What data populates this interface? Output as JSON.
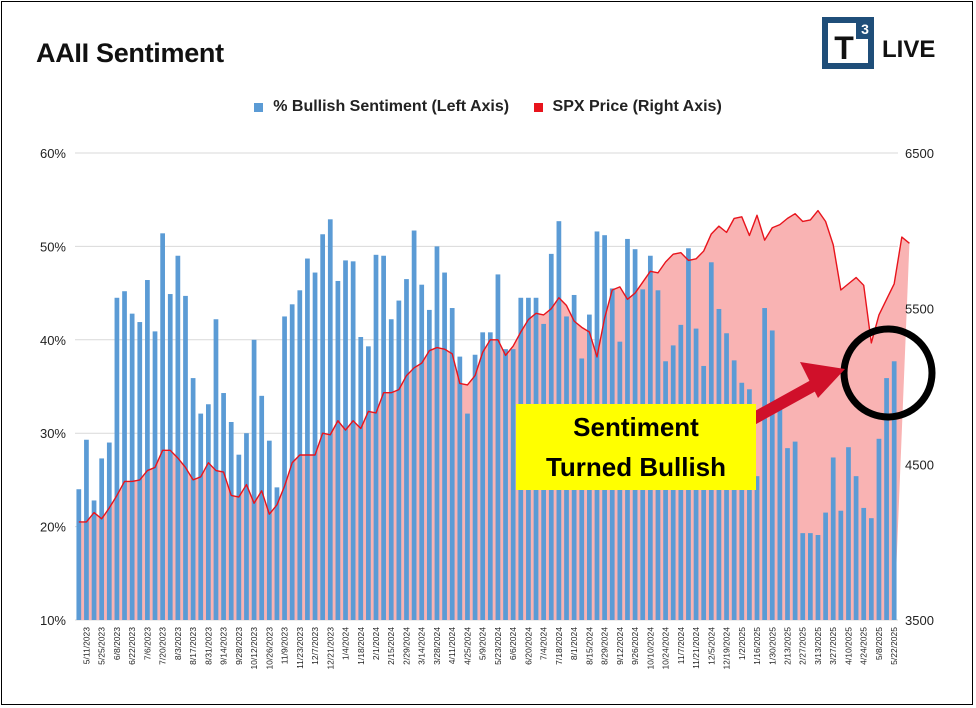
{
  "title": "AAII Sentiment",
  "logo": {
    "mark": "T",
    "superscript": "3",
    "text": "LIVE"
  },
  "legend": {
    "bull_label": "% Bullish Sentiment (Left Axis)",
    "spx_label": "SPX Price (Right Axis)"
  },
  "callout": {
    "line1": "Sentiment",
    "line2": "Turned Bullish"
  },
  "colors": {
    "bar": "#5b9bd5",
    "spx_line": "#e8141c",
    "spx_fill": "#f9b3b3",
    "arrow": "#d0102a",
    "callout_bg": "#ffff00"
  },
  "chart_data": {
    "type": "bar+line",
    "left_axis": {
      "min": 10,
      "max": 60,
      "ticks": [
        "10%",
        "20%",
        "30%",
        "40%",
        "50%",
        "60%"
      ]
    },
    "right_axis": {
      "min": 3500,
      "max": 6500,
      "ticks": [
        "3500",
        "4500",
        "5500",
        "6500"
      ]
    },
    "x_tick_labels": [
      "5/11/2023",
      "5/25/2023",
      "6/8/2023",
      "6/22/2023",
      "7/6/2023",
      "7/20/2023",
      "8/3/2023",
      "8/17/2023",
      "8/31/2023",
      "9/14/2023",
      "9/28/2023",
      "10/12/2023",
      "10/26/2023",
      "11/9/2023",
      "11/23/2023",
      "12/7/2023",
      "12/21/2023",
      "1/4/2024",
      "1/18/2024",
      "2/1/2024",
      "2/15/2024",
      "2/29/2024",
      "3/14/2024",
      "3/28/2024",
      "4/11/2024",
      "4/25/2024",
      "5/9/2024",
      "5/23/2024",
      "6/6/2024",
      "6/20/2024",
      "7/4/2024",
      "7/18/2024",
      "8/1/2024",
      "8/15/2024",
      "8/29/2024",
      "9/12/2024",
      "9/26/2024",
      "10/10/2024",
      "10/24/2024",
      "11/7/2024",
      "11/21/2024",
      "12/5/2024",
      "12/19/2024",
      "1/2/2025",
      "1/16/2025",
      "1/30/2025",
      "2/13/2025",
      "2/27/2025",
      "3/13/2025",
      "3/27/2025",
      "4/10/2025",
      "4/24/2025",
      "5/8/2025",
      "5/22/2025"
    ],
    "series": [
      {
        "name": "% Bullish Sentiment (Left Axis)",
        "axis": "left",
        "type": "bar",
        "values": [
          24.0,
          29.3,
          22.8,
          27.3,
          29.0,
          44.5,
          45.2,
          42.8,
          41.9,
          46.4,
          40.9,
          51.4,
          44.9,
          49.0,
          44.7,
          35.9,
          32.1,
          33.1,
          42.2,
          34.3,
          31.2,
          27.7,
          30.0,
          40.0,
          34.0,
          29.2,
          24.2,
          42.5,
          43.8,
          45.3,
          48.7,
          47.2,
          51.3,
          52.9,
          46.3,
          48.5,
          48.4,
          40.3,
          39.3,
          49.1,
          49.0,
          42.2,
          44.2,
          46.5,
          51.7,
          45.9,
          43.2,
          50.0,
          47.2,
          43.4,
          38.2,
          32.1,
          38.4,
          40.8,
          40.8,
          47.0,
          39.0,
          39.0,
          44.5,
          44.5,
          44.5,
          41.7,
          49.2,
          52.7,
          42.5,
          44.8,
          38.0,
          42.7,
          51.6,
          51.2,
          45.5,
          39.8,
          50.8,
          49.7,
          45.4,
          49.0,
          45.3,
          37.7,
          39.4,
          41.6,
          49.8,
          41.2,
          37.2,
          48.3,
          43.3,
          40.7,
          37.8,
          35.4,
          34.7,
          25.4,
          43.4,
          41.0,
          33.0,
          28.4,
          29.1,
          19.3,
          19.3,
          19.1,
          21.5,
          27.4,
          21.7,
          28.5,
          25.4,
          22.0,
          20.9,
          29.4,
          35.9,
          37.7
        ]
      },
      {
        "name": "SPX Price (Right Axis)",
        "axis": "right",
        "type": "area-line",
        "values": [
          4130,
          4130,
          4190,
          4150,
          4220,
          4300,
          4390,
          4390,
          4400,
          4460,
          4480,
          4590,
          4590,
          4540,
          4480,
          4400,
          4420,
          4510,
          4460,
          4450,
          4300,
          4290,
          4370,
          4250,
          4330,
          4180,
          4240,
          4360,
          4510,
          4560,
          4560,
          4560,
          4700,
          4690,
          4780,
          4720,
          4780,
          4730,
          4840,
          4830,
          4960,
          4960,
          4980,
          5070,
          5120,
          5150,
          5230,
          5250,
          5240,
          5210,
          5020,
          5010,
          5070,
          5220,
          5300,
          5300,
          5200,
          5260,
          5350,
          5430,
          5470,
          5460,
          5500,
          5570,
          5520,
          5420,
          5380,
          5350,
          5190,
          5440,
          5620,
          5640,
          5560,
          5600,
          5670,
          5740,
          5730,
          5800,
          5850,
          5860,
          5810,
          5820,
          5870,
          5980,
          6030,
          5990,
          6080,
          6090,
          5970,
          6100,
          5940,
          6020,
          6040,
          6080,
          6110,
          6060,
          6070,
          6130,
          6060,
          5910,
          5620,
          5660,
          5700,
          5650,
          5280,
          5460,
          5560,
          5660,
          5960,
          5920
        ]
      }
    ]
  }
}
